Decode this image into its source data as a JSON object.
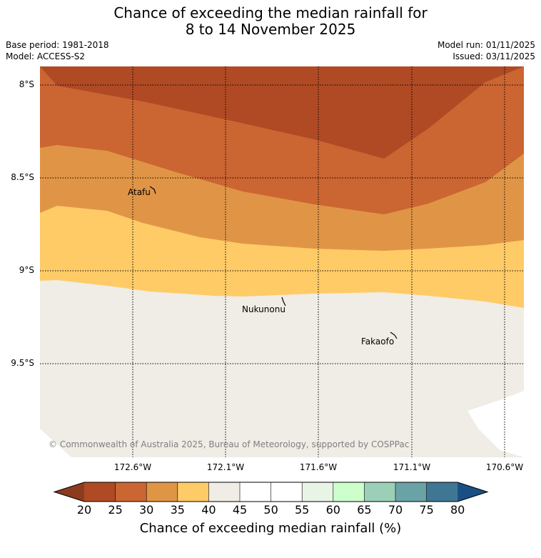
{
  "title": {
    "line1": "Chance of exceeding the median rainfall for",
    "line2": "8 to 14 November 2025"
  },
  "meta": {
    "base_period": "Base period: 1981-2018",
    "model": "Model: ACCESS-S2",
    "model_run": "Model run: 01/11/2025",
    "issued": "Issued: 03/11/2025"
  },
  "axes": {
    "lat_labels": [
      "8°S",
      "8.5°S",
      "9°S",
      "9.5°S"
    ],
    "lon_labels": [
      "172.6°W",
      "172.1°W",
      "171.6°W",
      "171.1°W",
      "170.6°W"
    ]
  },
  "places": {
    "atafu": "Atafu",
    "nukunonu": "Nukunonu",
    "fakaofo": "Fakaofo"
  },
  "copyright": "© Commonwealth of Australia 2025, Bureau of Meteorology, supported by COSPPac",
  "colorbar": {
    "ticks": [
      "20",
      "25",
      "30",
      "35",
      "40",
      "45",
      "50",
      "55",
      "60",
      "65",
      "70",
      "75",
      "80"
    ],
    "label": "Chance of exceeding median rainfall (%)",
    "colors": {
      "below_20": "#8c3b1e",
      "20_25": "#b04a24",
      "25_30": "#cb6532",
      "30_35": "#e09546",
      "35_40": "#fecb66",
      "40_45": "#f0ece6",
      "45_50": "#ffffff",
      "50_55": "#ffffff",
      "55_60": "#e8f5e6",
      "60_65": "#ccffcc",
      "65_70": "#9ccfb8",
      "70_75": "#6aa3a6",
      "75_80": "#3f7693",
      "above_80": "#1a4f85"
    }
  }
}
